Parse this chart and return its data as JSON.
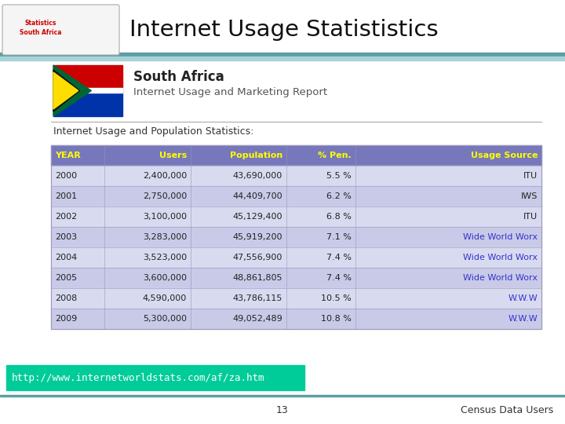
{
  "title": "Internet Usage Statististics",
  "subtitle_bold": "South Africa",
  "subtitle_sub": "Internet Usage and Marketing Report",
  "section_header": "Internet Usage and Population Statistics:",
  "table_headers": [
    "YEAR",
    "Users",
    "Population",
    "% Pen.",
    "Usage Source"
  ],
  "table_data": [
    [
      "2000",
      "2,400,000",
      "43,690,000",
      "5.5 %",
      "ITU"
    ],
    [
      "2001",
      "2,750,000",
      "44,409,700",
      "6.2 %",
      "IWS"
    ],
    [
      "2002",
      "3,100,000",
      "45,129,400",
      "6.8 %",
      "ITU"
    ],
    [
      "2003",
      "3,283,000",
      "45,919,200",
      "7.1 %",
      "Wide World Worx"
    ],
    [
      "2004",
      "3,523,000",
      "47,556,900",
      "7.4 %",
      "Wide World Worx"
    ],
    [
      "2005",
      "3,600,000",
      "48,861,805",
      "7.4 %",
      "Wide World Worx"
    ],
    [
      "2008",
      "4,590,000",
      "43,786,115",
      "10.5 %",
      "W.W.W"
    ],
    [
      "2009",
      "5,300,000",
      "49,052,489",
      "10.8 %",
      "W.W.W"
    ]
  ],
  "link_rows": [
    3,
    4,
    5,
    6,
    7
  ],
  "footer_url": "http://www.internetworldstats.com/af/za.htm",
  "footer_page": "13",
  "footer_right": "Census Data Users",
  "table_header_bg": "#7777bb",
  "table_header_fg": "#ffff00",
  "table_row_bg_odd": "#d8daf0",
  "table_row_bg_even": "#c8cae8",
  "table_border_color": "#9999bb",
  "footer_url_bg": "#00cc99",
  "footer_url_fg": "#ffffff",
  "link_color": "#3333cc",
  "normal_color": "#222222",
  "teal_bar1": "#5b9ea6",
  "teal_bar2": "#a8d4d8"
}
